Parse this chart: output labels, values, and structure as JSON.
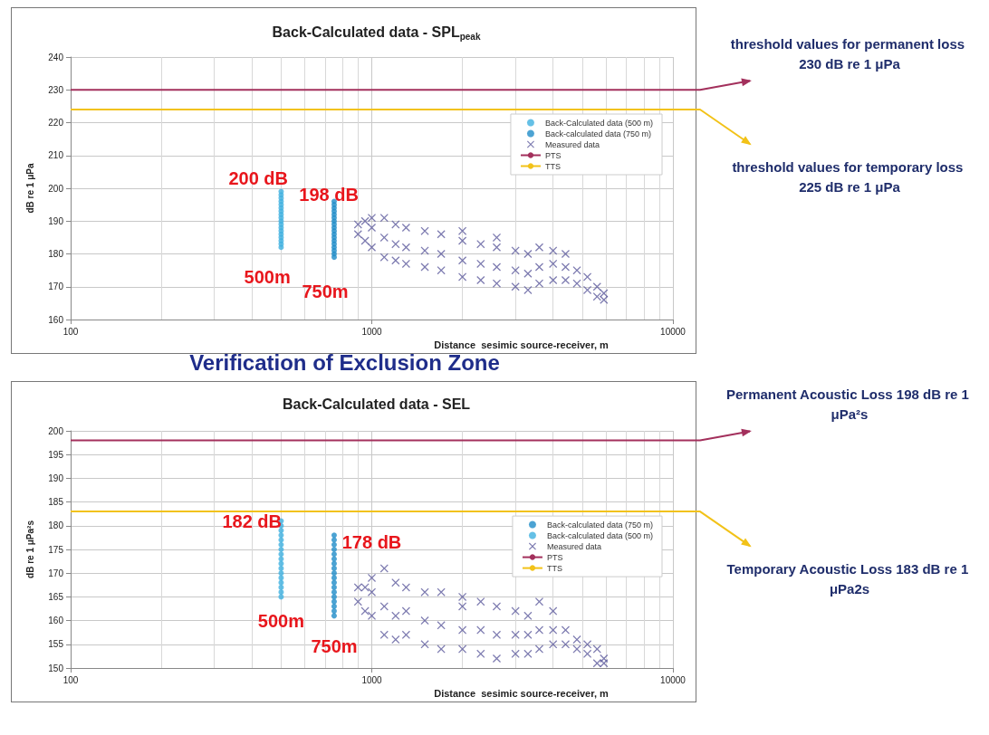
{
  "chart_data": [
    {
      "type": "scatter",
      "title": "Back-Calculated data - SPL$_{peak}$",
      "xlabel": "Distance  sesimic source-receiver, m",
      "ylabel": "dB re 1 μPa",
      "log": "x",
      "xlim": [
        100,
        10000
      ],
      "xticks": [
        100,
        1000,
        10000
      ],
      "ylim": [
        160,
        240
      ],
      "yticks": [
        160,
        170,
        180,
        190,
        200,
        210,
        220,
        230,
        240
      ],
      "grid": true,
      "legend": "top right",
      "series": [
        {
          "name": "Back-Calculated data (500 m)",
          "color": "#3fb0e0",
          "marker": "circle",
          "x": [
            500,
            500,
            500,
            500,
            500,
            500,
            500,
            500,
            500,
            500,
            500,
            500,
            500,
            500,
            500,
            500,
            500,
            500
          ],
          "values": [
            182,
            183,
            184,
            185,
            186,
            187,
            188,
            189,
            190,
            191,
            192,
            193,
            194,
            195,
            196,
            197,
            198,
            199
          ]
        },
        {
          "name": "Back-calculated data (750 m)",
          "color": "#1f8cc8",
          "marker": "circle",
          "x": [
            750,
            750,
            750,
            750,
            750,
            750,
            750,
            750,
            750,
            750,
            750,
            750,
            750,
            750,
            750,
            750,
            750,
            750
          ],
          "values": [
            179,
            180,
            181,
            182,
            183,
            184,
            185,
            186,
            187,
            188,
            189,
            190,
            191,
            192,
            193,
            194,
            195,
            196
          ]
        },
        {
          "name": "Measured data",
          "color": "#5c5a9c",
          "marker": "cross",
          "x": [
            900,
            900,
            950,
            950,
            1000,
            1000,
            1000,
            1100,
            1100,
            1100,
            1200,
            1200,
            1200,
            1300,
            1300,
            1300,
            1500,
            1500,
            1500,
            1700,
            1700,
            1700,
            2000,
            2000,
            2000,
            2000,
            2300,
            2300,
            2300,
            2600,
            2600,
            2600,
            2600,
            3000,
            3000,
            3000,
            3300,
            3300,
            3300,
            3600,
            3600,
            3600,
            4000,
            4000,
            4000,
            4400,
            4400,
            4400,
            4800,
            4800,
            5200,
            5200,
            5600,
            5600,
            5900,
            5900
          ],
          "values": [
            186,
            189,
            184,
            190,
            182,
            188,
            191,
            179,
            185,
            191,
            178,
            183,
            189,
            177,
            182,
            188,
            176,
            181,
            187,
            175,
            180,
            186,
            173,
            178,
            184,
            187,
            172,
            177,
            183,
            171,
            176,
            182,
            185,
            170,
            175,
            181,
            169,
            174,
            180,
            171,
            176,
            182,
            172,
            177,
            181,
            172,
            176,
            180,
            171,
            175,
            169,
            173,
            167,
            170,
            166,
            168
          ]
        },
        {
          "name": "PTS",
          "type": "line",
          "color": "#a3305c",
          "marker": "none",
          "line_style": "solid",
          "x": [
            100,
            10000
          ],
          "values": [
            230,
            230
          ]
        },
        {
          "name": "TTS",
          "type": "line",
          "color": "#f2c218",
          "marker": "none",
          "line_style": "solid",
          "x": [
            100,
            10000
          ],
          "values": [
            224,
            224
          ]
        }
      ],
      "annotations": [
        "200 dB",
        "198 dB",
        "500m",
        "750m",
        "threshold values for permanent loss 230 dB re 1 μPa",
        "threshold values for temporary loss 225 dB re 1 μPa"
      ]
    },
    {
      "type": "scatter",
      "title": "Back-Calculated data - SEL",
      "xlabel": "Distance  sesimic source-receiver, m",
      "ylabel": "dB re 1 μPa²s",
      "log": "x",
      "xlim": [
        100,
        10000
      ],
      "xticks": [
        100,
        1000,
        10000
      ],
      "ylim": [
        150,
        200
      ],
      "yticks": [
        150,
        155,
        160,
        165,
        170,
        175,
        180,
        185,
        190,
        195,
        200
      ],
      "grid": true,
      "legend": "top right",
      "series": [
        {
          "name": "Back-calculated data (750 m)",
          "color": "#1f8cc8",
          "marker": "circle",
          "x": [
            750,
            750,
            750,
            750,
            750,
            750,
            750,
            750,
            750,
            750,
            750,
            750,
            750,
            750,
            750,
            750,
            750,
            750
          ],
          "values": [
            161,
            162,
            163,
            164,
            165,
            166,
            167,
            168,
            169,
            170,
            171,
            172,
            173,
            174,
            175,
            176,
            177,
            178
          ]
        },
        {
          "name": "Back-calculated data (500 m)",
          "color": "#3fb0e0",
          "marker": "circle",
          "x": [
            500,
            500,
            500,
            500,
            500,
            500,
            500,
            500,
            500,
            500,
            500,
            500,
            500,
            500,
            500,
            500,
            500
          ],
          "values": [
            165,
            166,
            167,
            168,
            169,
            170,
            171,
            172,
            173,
            174,
            175,
            176,
            177,
            178,
            179,
            180,
            181
          ]
        },
        {
          "name": "Measured data",
          "color": "#5c5a9c",
          "marker": "cross",
          "x": [
            900,
            900,
            950,
            950,
            1000,
            1000,
            1000,
            1100,
            1100,
            1100,
            1200,
            1200,
            1200,
            1300,
            1300,
            1300,
            1500,
            1500,
            1500,
            1700,
            1700,
            1700,
            2000,
            2000,
            2000,
            2000,
            2300,
            2300,
            2300,
            2600,
            2600,
            2600,
            3000,
            3000,
            3000,
            3300,
            3300,
            3300,
            3600,
            3600,
            3600,
            4000,
            4000,
            4000,
            4400,
            4400,
            4800,
            4800,
            5200,
            5200,
            5600,
            5600,
            5900,
            5900
          ],
          "values": [
            164,
            167,
            162,
            167,
            161,
            166,
            169,
            157,
            163,
            171,
            156,
            161,
            168,
            157,
            162,
            167,
            155,
            160,
            166,
            154,
            159,
            166,
            154,
            158,
            163,
            165,
            153,
            158,
            164,
            152,
            157,
            163,
            153,
            157,
            162,
            153,
            157,
            161,
            154,
            158,
            164,
            155,
            158,
            162,
            155,
            158,
            154,
            156,
            153,
            155,
            151,
            154,
            151,
            152
          ]
        },
        {
          "name": "PTS",
          "type": "line",
          "color": "#a3305c",
          "marker": "none",
          "line_style": "solid",
          "x": [
            100,
            10000
          ],
          "values": [
            198,
            198
          ]
        },
        {
          "name": "TTS",
          "type": "line",
          "color": "#f2c218",
          "marker": "none",
          "line_style": "solid",
          "x": [
            100,
            10000
          ],
          "values": [
            183,
            183
          ]
        }
      ],
      "annotations": [
        "Verification of Exclusion Zone",
        "182 dB",
        "178 dB",
        "500m",
        "750m",
        "Permanent Acoustic Loss 198 dB re 1 μPa²s",
        "Temporary Acoustic Loss 183 dB re 1 μPa2s"
      ]
    }
  ]
}
